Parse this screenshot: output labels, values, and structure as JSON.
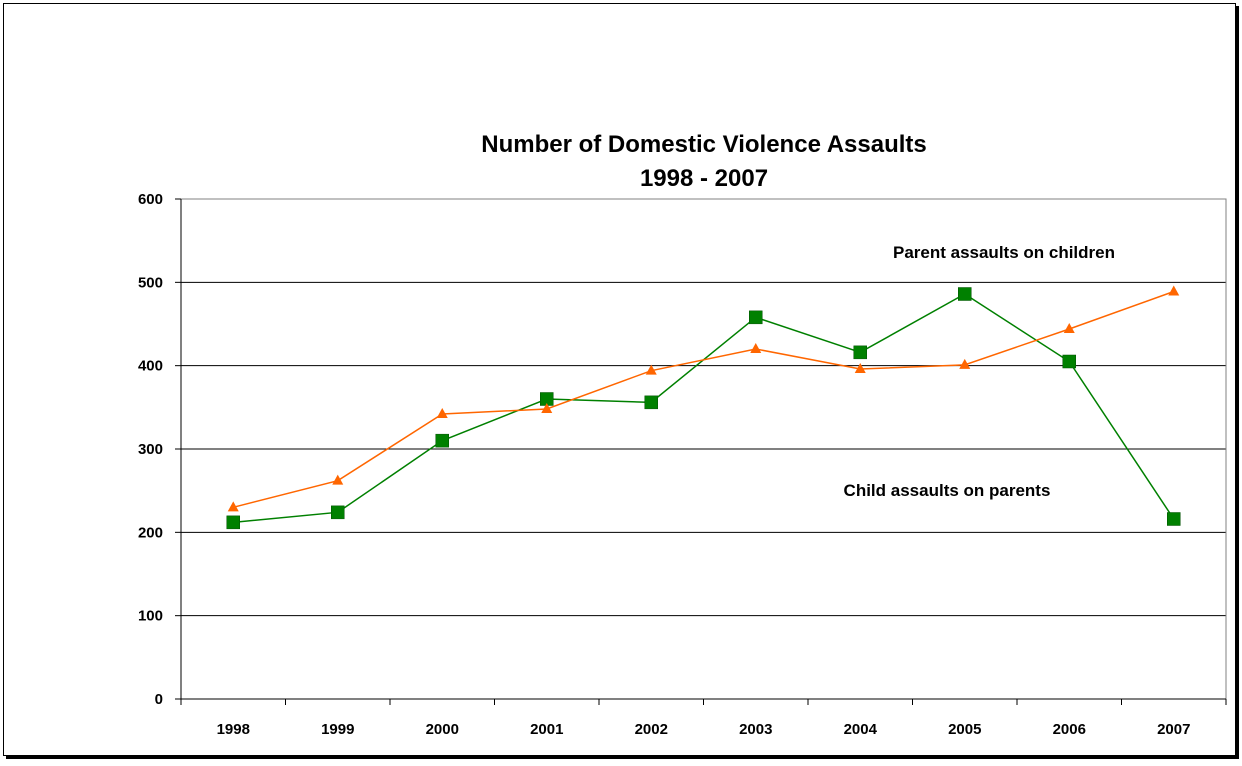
{
  "chart_data": {
    "type": "line",
    "title": "Number of Domestic Violence Assaults",
    "subtitle": "1998 - 2007",
    "xlabel": "",
    "ylabel": "",
    "ylim": [
      0,
      600
    ],
    "yticks": [
      0,
      100,
      200,
      300,
      400,
      500,
      600
    ],
    "grid": true,
    "categories": [
      "1998",
      "1999",
      "2000",
      "2001",
      "2002",
      "2003",
      "2004",
      "2005",
      "2006",
      "2007"
    ],
    "series": [
      {
        "color": "#008000",
        "marker": "square",
        "values": [
          212,
          224,
          310,
          360,
          356,
          458,
          416,
          486,
          405,
          216
        ]
      },
      {
        "color": "#FF6600",
        "marker": "triangle",
        "values": [
          230,
          262,
          342,
          348,
          394,
          420,
          396,
          401,
          444,
          489
        ]
      }
    ],
    "annotations": {
      "upper": "Parent assaults on children",
      "lower": "Child assaults on parents"
    }
  }
}
